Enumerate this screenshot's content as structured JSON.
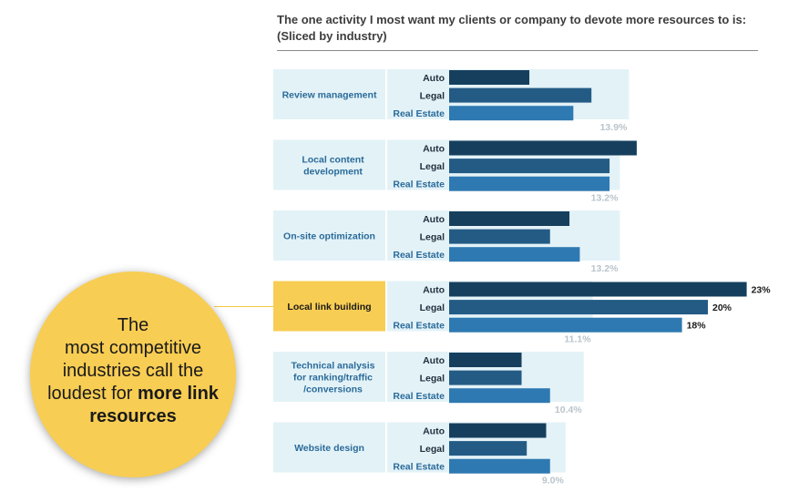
{
  "chart_data": {
    "type": "bar",
    "orientation": "horizontal",
    "title": "The one activity I most want my clients or company to devote more resources to is:",
    "subtitle": "(Sliced by industry)",
    "series_names": [
      "Auto",
      "Legal",
      "Real Estate"
    ],
    "colors": {
      "Auto": "#163f5e",
      "Legal": "#235b85",
      "Real Estate": "#2e79b1",
      "overall": "#e3f2f7",
      "label_box": "#e3f2f7",
      "highlight_box": "#f8cd53",
      "category_text": "#2a6b9a",
      "overall_text": "#b9c4cb"
    },
    "categories": [
      {
        "name": "Review management",
        "overall": 13.9,
        "overall_label": "13.9%",
        "values": {
          "Auto": 6.2,
          "Legal": 11.0,
          "Real Estate": 9.6
        },
        "highlight": false
      },
      {
        "name": "Local content development",
        "overall": 13.2,
        "overall_label": "13.2%",
        "values": {
          "Auto": 14.5,
          "Legal": 12.4,
          "Real Estate": 12.4
        },
        "highlight": false
      },
      {
        "name": "On-site optimization",
        "overall": 13.2,
        "overall_label": "13.2%",
        "values": {
          "Auto": 9.3,
          "Legal": 7.8,
          "Real Estate": 10.1
        },
        "highlight": false
      },
      {
        "name": "Local link building",
        "overall": 11.1,
        "overall_label": "11.1%",
        "values": {
          "Auto": 23,
          "Legal": 20,
          "Real Estate": 18
        },
        "value_labels": {
          "Auto": "23%",
          "Legal": "20%",
          "Real Estate": "18%"
        },
        "highlight": true
      },
      {
        "name": "Technical analysis for ranking/traffic /conversions",
        "overall": 10.4,
        "overall_label": "10.4%",
        "values": {
          "Auto": 5.6,
          "Legal": 5.6,
          "Real Estate": 7.8
        },
        "highlight": false
      },
      {
        "name": "Website design",
        "overall": 9.0,
        "overall_label": "9.0%",
        "values": {
          "Auto": 7.5,
          "Legal": 6.0,
          "Real Estate": 7.8
        },
        "highlight": false
      }
    ]
  },
  "callout": {
    "line1": "The",
    "line2": "most competitive",
    "line3": "industries call the",
    "line4_plain": "loudest for ",
    "line4_bold": "more link",
    "line5_bold": "resources"
  }
}
